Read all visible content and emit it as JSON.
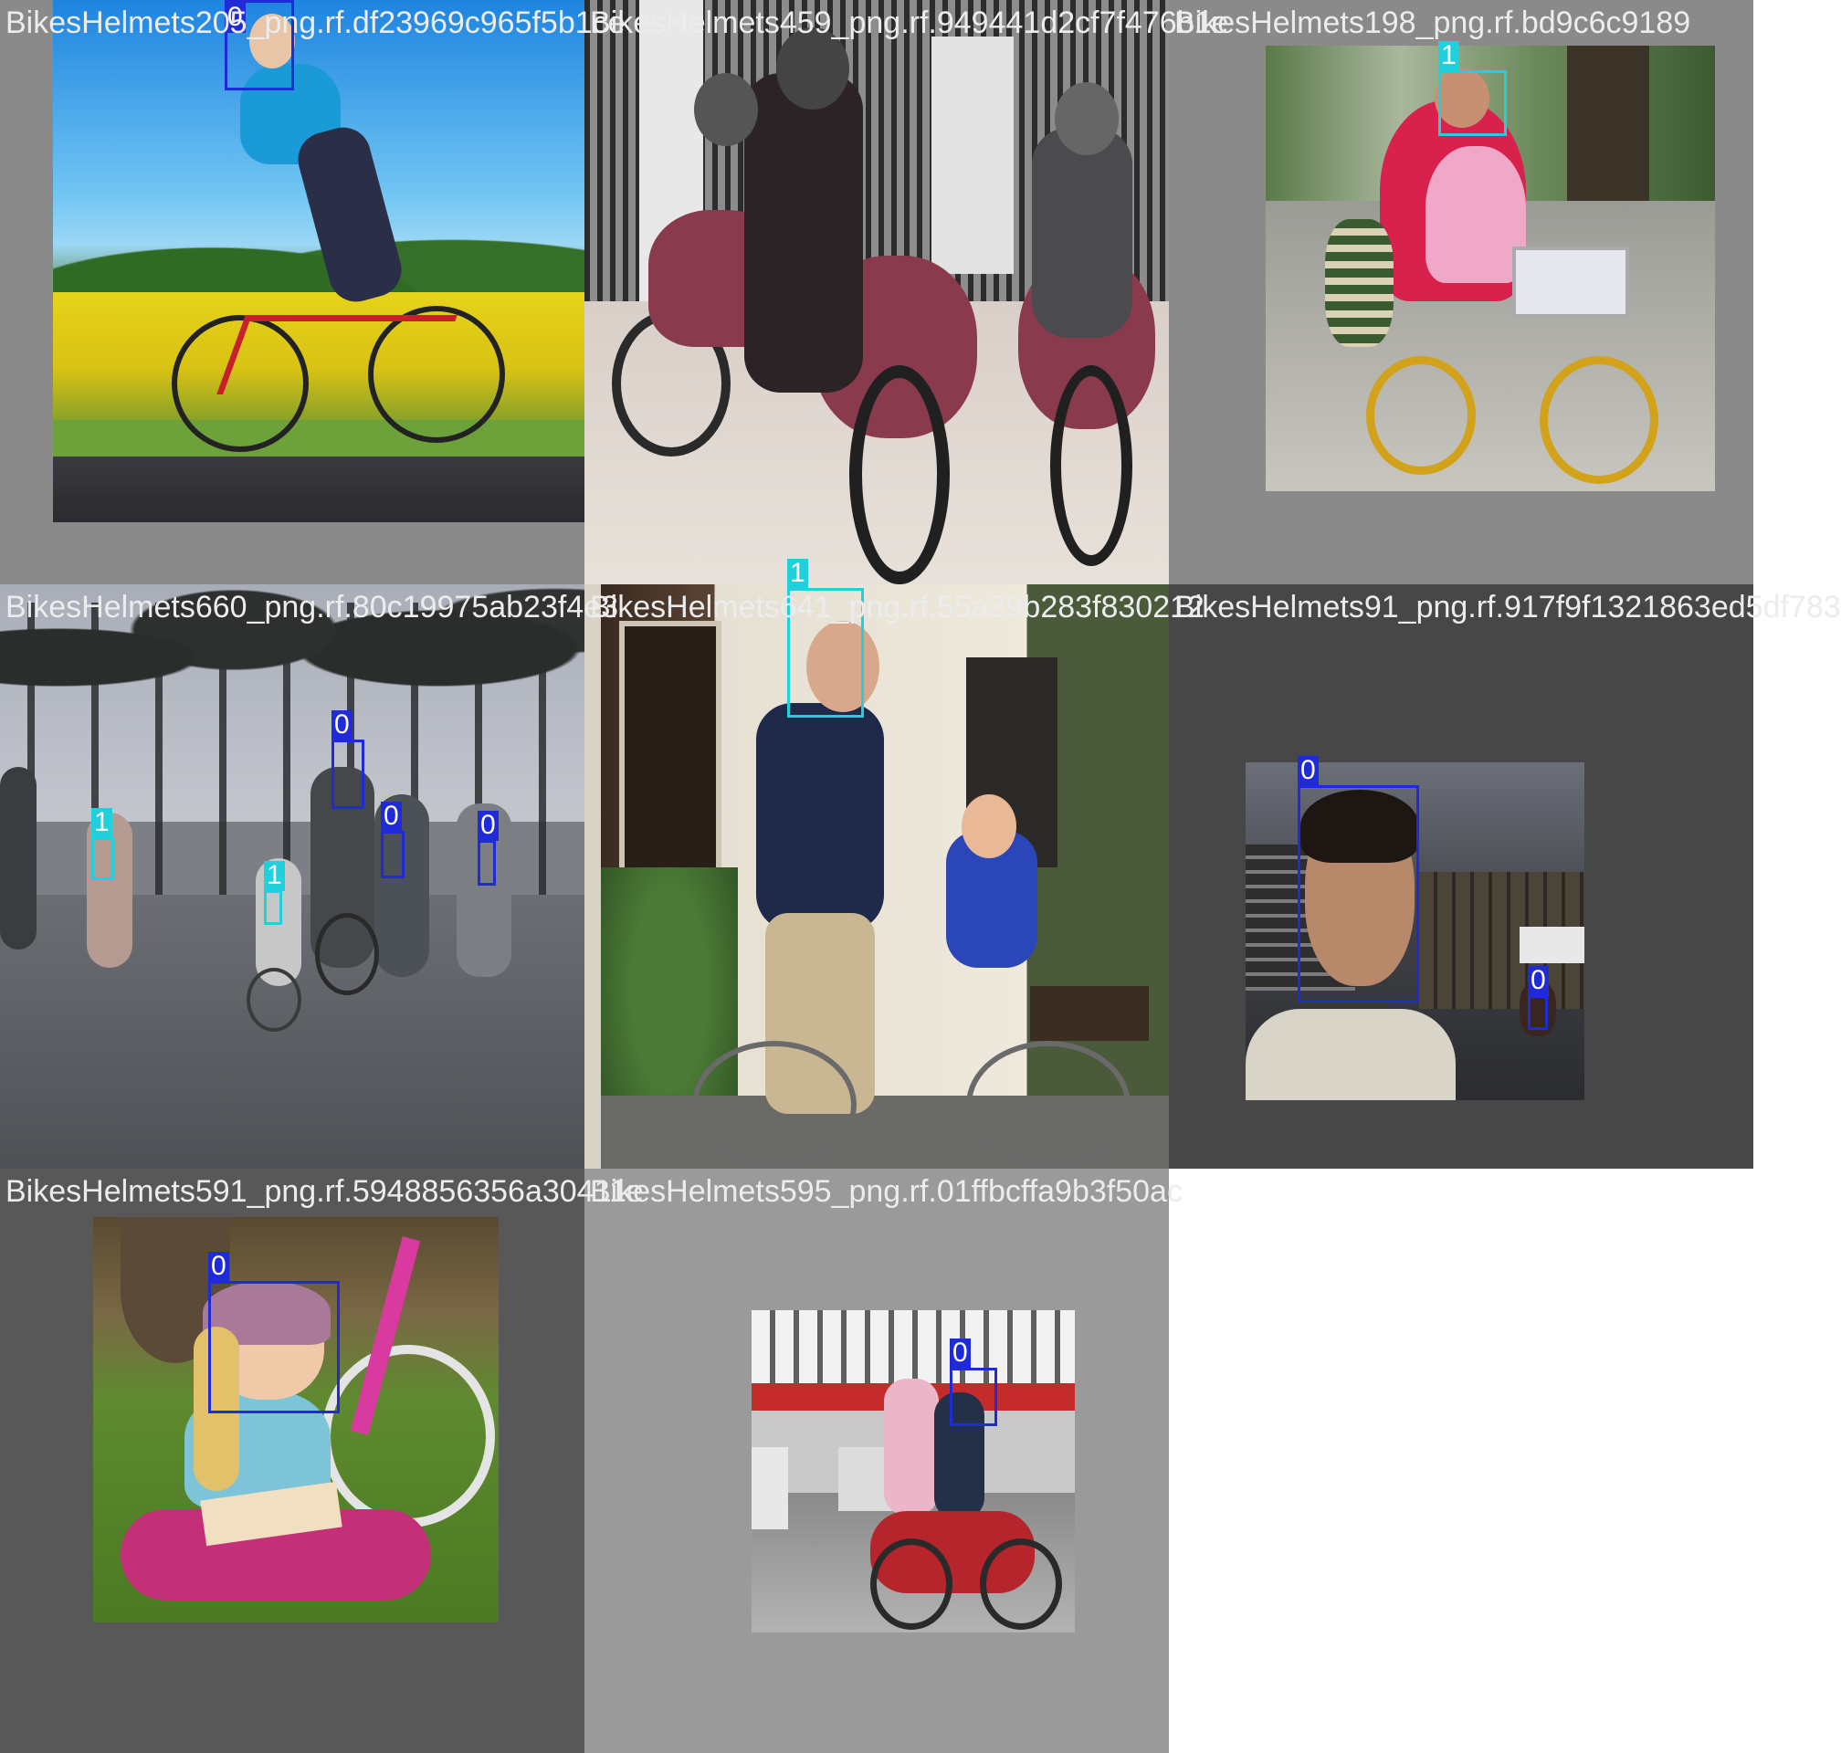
{
  "mosaic": {
    "colors": {
      "class0": "#1f2bd9",
      "class1": "#20d0dc",
      "title_text": "#ececec",
      "page_bg": "#ffffff"
    },
    "tiles": [
      {
        "title": "BikesHelmets205_png.rf.df23969c965f5b1ce",
        "background": "#8a8a8a",
        "scene": "sky-meadow-cyclist",
        "boxes": [
          {
            "label": "0",
            "class": 0
          }
        ]
      },
      {
        "title": "BikesHelmets459_png.rf.949441d2cf7f476b1e",
        "background": "#c8c4c2",
        "scene": "motorcycle-riders",
        "boxes": []
      },
      {
        "title": "BikesHelmets198_png.rf.bd9c6c9189",
        "background": "#8a8a8a",
        "scene": "family-on-bicycle",
        "boxes": [
          {
            "label": "1",
            "class": 1
          }
        ]
      },
      {
        "title": "BikesHelmets660_png.rf.80c19975ab23f4e3",
        "background": "#7c7f86",
        "scene": "palm-street-cyclists",
        "boxes": [
          {
            "label": "0",
            "class": 0
          },
          {
            "label": "0",
            "class": 0
          },
          {
            "label": "0",
            "class": 0
          },
          {
            "label": "1",
            "class": 1
          },
          {
            "label": "1",
            "class": 1
          }
        ]
      },
      {
        "title": "BikesHelmets641_png.rf.55a39b283f830212",
        "background": "#d9d2c6",
        "scene": "father-son-bicycle",
        "boxes": [
          {
            "label": "1",
            "class": 1
          }
        ]
      },
      {
        "title": "BikesHelmets91_png.rf.917f9f1321863ed5df783",
        "background": "#474747",
        "scene": "office-selfie",
        "boxes": [
          {
            "label": "0",
            "class": 0
          },
          {
            "label": "0",
            "class": 0
          }
        ]
      },
      {
        "title": "BikesHelmets591_png.rf.5948856356a30411e",
        "background": "#585858",
        "scene": "girl-reading-helmet",
        "boxes": [
          {
            "label": "0",
            "class": 0
          }
        ]
      },
      {
        "title": "BikesHelmets595_png.rf.01ffbcffa9b3f50ac",
        "background": "#9a9a9a",
        "scene": "street-motorbike-couple",
        "boxes": [
          {
            "label": "0",
            "class": 0
          }
        ]
      }
    ]
  }
}
